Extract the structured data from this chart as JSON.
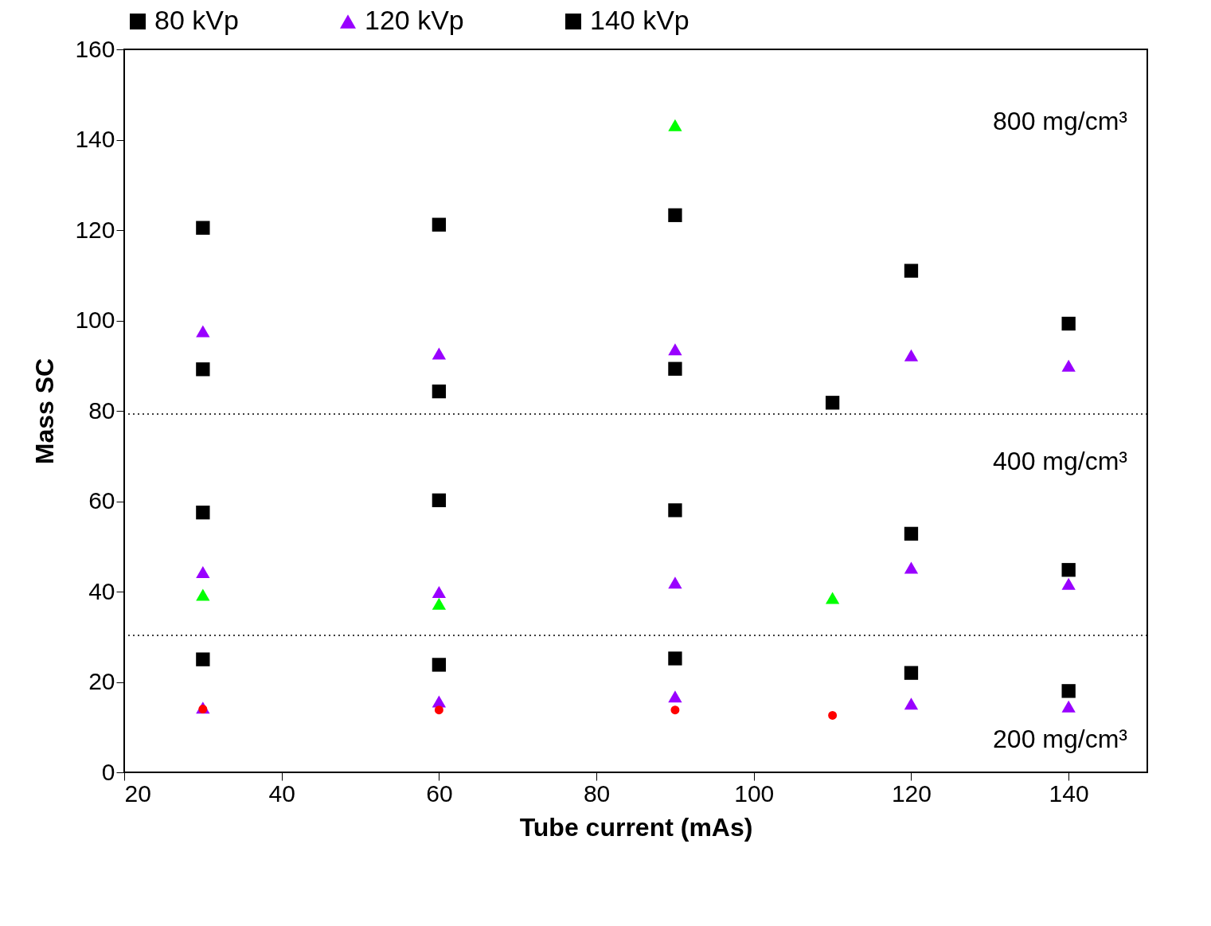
{
  "chart_data": {
    "type": "scatter",
    "xlabel": "Tube current (mAs)",
    "ylabel": "Mass SC",
    "xlim": [
      20,
      150
    ],
    "xticks": [
      20,
      40,
      60,
      80,
      100,
      120,
      140
    ],
    "ylim": [
      0,
      160
    ],
    "yticks": [
      0,
      20,
      40,
      60,
      80,
      100,
      120,
      140,
      160
    ],
    "legend": "top",
    "grid": false,
    "series": [
      {
        "name": "80 kVp",
        "color": "#000000",
        "marker": "square",
        "x": [
          30,
          30,
          30,
          60,
          60,
          60,
          90,
          90,
          90,
          110,
          120,
          120,
          120,
          140,
          140,
          140
        ],
        "values": [
          120.5,
          57.5,
          25,
          121.2,
          60.2,
          23.8,
          123.3,
          58,
          25.2,
          81.8,
          111,
          52.8,
          22,
          99.3,
          44.8,
          18
        ]
      },
      {
        "name": "120 kVp",
        "color": "#9900ff",
        "marker": "triangle",
        "x": [
          30,
          30,
          30,
          60,
          60,
          60,
          90,
          90,
          90,
          120,
          120,
          120,
          140,
          140,
          140
        ],
        "values": [
          97.6,
          44.3,
          14.3,
          92.7,
          39.9,
          15.7,
          93.6,
          42,
          16.8,
          92.3,
          45.3,
          15.2,
          90,
          41.7,
          14.6
        ]
      },
      {
        "name": "140 kVp",
        "color": "#000000",
        "marker": "square",
        "x": [
          30,
          60,
          90
        ],
        "values": [
          89.2,
          84.3,
          89.3
        ]
      },
      {
        "color": "#00ff00",
        "marker": "triangle",
        "x": [
          90,
          30,
          60,
          110
        ],
        "values": [
          143.2,
          39.3,
          37.3,
          38.6
        ]
      },
      {
        "color": "#ff0000",
        "marker": "circle",
        "x": [
          30,
          60,
          90,
          110
        ],
        "values": [
          14,
          13.8,
          13.8,
          12.6
        ]
      }
    ],
    "ref_lines": [
      {
        "axis": "y",
        "value": 79.3,
        "line_style": "dotted"
      },
      {
        "axis": "y",
        "value": 30.3,
        "line_style": "dotted"
      }
    ],
    "annotations": [
      "800 mg/cm³",
      "400 mg/cm³",
      "200 mg/cm³"
    ]
  }
}
